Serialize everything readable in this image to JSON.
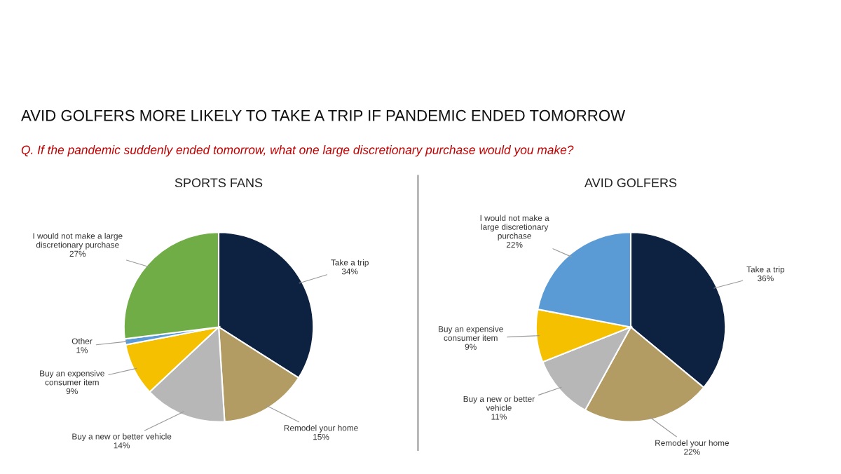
{
  "chart_data": [
    {
      "type": "pie",
      "title": "SPORTS FANS",
      "annotations": [
        "AVID GOLFERS MORE LIKELY TO TAKE A TRIP IF PANDEMIC ENDED TOMORROW",
        "Q. If the pandemic suddenly ended tomorrow, what one large discretionary purchase would you make?"
      ],
      "categories": [
        "Take a trip",
        "Remodel your home",
        "Buy a new or better vehicle",
        "Buy an expensive\nconsumer item",
        "Other",
        "I would not make a large\ndiscretionary purchase"
      ],
      "values": [
        34,
        15,
        14,
        9,
        1,
        27
      ],
      "value_labels": [
        "34%",
        "15%",
        "14%",
        "9%",
        "1%",
        "27%"
      ],
      "colors": [
        "#0d2240",
        "#b39c64",
        "#b7b7b7",
        "#f5c000",
        "#5b9bd5",
        "#70ad47"
      ]
    },
    {
      "type": "pie",
      "title": "AVID GOLFERS",
      "categories": [
        "Take a trip",
        "Remodel your home",
        "Buy a new or better\nvehicle",
        "Buy an expensive\nconsumer item",
        "I would not make a\nlarge discretionary\npurchase"
      ],
      "values": [
        36,
        22,
        11,
        9,
        22
      ],
      "value_labels": [
        "36%",
        "22%",
        "11%",
        "9%",
        "22%"
      ],
      "colors": [
        "#0d2240",
        "#b39c64",
        "#b7b7b7",
        "#f5c000",
        "#5b9bd5"
      ]
    }
  ]
}
